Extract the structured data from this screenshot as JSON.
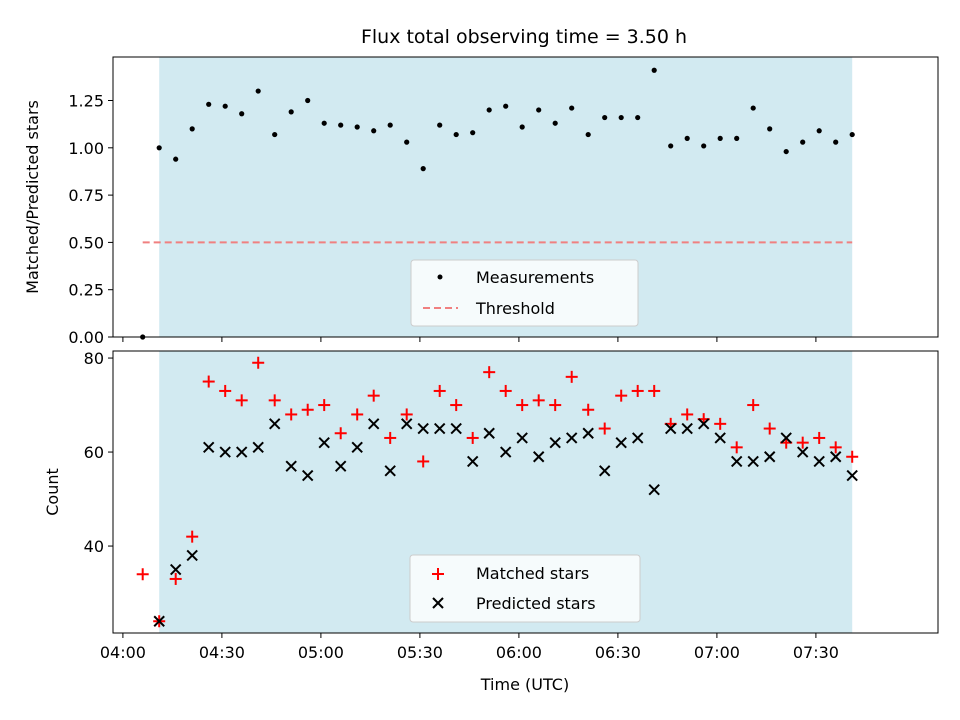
{
  "chart_data": [
    {
      "type": "scatter",
      "title": "Flux total observing time = 3.50 h",
      "xlabel": "",
      "ylabel": "Matched/Predicted stars",
      "xlim": [
        "03:57",
        "08:07"
      ],
      "ylim": [
        0,
        1.48
      ],
      "yticks": [
        0.0,
        0.25,
        0.5,
        0.75,
        1.0,
        1.25
      ],
      "ytick_labels": [
        "0.00",
        "0.25",
        "0.50",
        "0.75",
        "1.00",
        "1.25"
      ],
      "shaded_span": [
        "04:11",
        "07:41"
      ],
      "shade_color": "#add8e6",
      "legend": {
        "placement": "lower center"
      },
      "series": [
        {
          "name": "Measurements",
          "kind": "points",
          "color": "#000000",
          "x": [
            "04:06",
            "04:11",
            "04:16",
            "04:21",
            "04:26",
            "04:31",
            "04:36",
            "04:41",
            "04:46",
            "04:51",
            "04:56",
            "05:01",
            "05:06",
            "05:11",
            "05:16",
            "05:21",
            "05:26",
            "05:31",
            "05:36",
            "05:41",
            "05:46",
            "05:51",
            "05:56",
            "06:01",
            "06:06",
            "06:11",
            "06:16",
            "06:21",
            "06:26",
            "06:31",
            "06:36",
            "06:41",
            "06:46",
            "06:51",
            "06:56",
            "07:01",
            "07:06",
            "07:11",
            "07:16",
            "07:21",
            "07:26",
            "07:31",
            "07:36",
            "07:41"
          ],
          "y": [
            0.0,
            1.0,
            0.94,
            1.1,
            1.23,
            1.22,
            1.18,
            1.3,
            1.07,
            1.19,
            1.25,
            1.13,
            1.12,
            1.11,
            1.09,
            1.12,
            1.03,
            0.89,
            1.12,
            1.07,
            1.08,
            1.2,
            1.22,
            1.11,
            1.2,
            1.13,
            1.21,
            1.07,
            1.16,
            1.16,
            1.16,
            1.41,
            1.01,
            1.05,
            1.01,
            1.05,
            1.05,
            1.21,
            1.1,
            0.98,
            1.03,
            1.09,
            1.03,
            1.07
          ]
        },
        {
          "name": "Threshold",
          "kind": "dashed-line",
          "color": "#f08080",
          "x": [
            "04:06",
            "07:41"
          ],
          "y": [
            0.5,
            0.5
          ]
        }
      ]
    },
    {
      "type": "scatter",
      "title": "",
      "xlabel": "Time (UTC)",
      "ylabel": "Count",
      "xlim": [
        "03:57",
        "08:07"
      ],
      "ylim": [
        21.5,
        81.5
      ],
      "yticks": [
        40,
        60,
        80
      ],
      "ytick_labels": [
        "40",
        "60",
        "80"
      ],
      "xticks": [
        "04:00",
        "04:30",
        "05:00",
        "05:30",
        "06:00",
        "06:30",
        "07:00",
        "07:30"
      ],
      "shaded_span": [
        "04:11",
        "07:41"
      ],
      "shade_color": "#add8e6",
      "legend": {
        "placement": "lower center"
      },
      "series": [
        {
          "name": "Matched stars",
          "kind": "plus",
          "color": "#ff0000",
          "x": [
            "04:06",
            "04:11",
            "04:16",
            "04:21",
            "04:26",
            "04:31",
            "04:36",
            "04:41",
            "04:46",
            "04:51",
            "04:56",
            "05:01",
            "05:06",
            "05:11",
            "05:16",
            "05:21",
            "05:26",
            "05:31",
            "05:36",
            "05:41",
            "05:46",
            "05:51",
            "05:56",
            "06:01",
            "06:06",
            "06:11",
            "06:16",
            "06:21",
            "06:26",
            "06:31",
            "06:36",
            "06:41",
            "06:46",
            "06:51",
            "06:56",
            "07:01",
            "07:06",
            "07:11",
            "07:16",
            "07:21",
            "07:26",
            "07:31",
            "07:36",
            "07:41"
          ],
          "y": [
            34,
            24,
            33,
            42,
            75,
            73,
            71,
            79,
            71,
            68,
            69,
            70,
            64,
            68,
            72,
            63,
            68,
            58,
            73,
            70,
            63,
            77,
            73,
            70,
            71,
            70,
            76,
            69,
            65,
            72,
            73,
            73,
            66,
            68,
            67,
            66,
            61,
            70,
            65,
            62,
            62,
            63,
            61,
            59
          ]
        },
        {
          "name": "Predicted stars",
          "kind": "x",
          "color": "#000000",
          "x": [
            "04:11",
            "04:16",
            "04:21",
            "04:26",
            "04:31",
            "04:36",
            "04:41",
            "04:46",
            "04:51",
            "04:56",
            "05:01",
            "05:06",
            "05:11",
            "05:16",
            "05:21",
            "05:26",
            "05:31",
            "05:36",
            "05:41",
            "05:46",
            "05:51",
            "05:56",
            "06:01",
            "06:06",
            "06:11",
            "06:16",
            "06:21",
            "06:26",
            "06:31",
            "06:36",
            "06:41",
            "06:46",
            "06:51",
            "06:56",
            "07:01",
            "07:06",
            "07:11",
            "07:16",
            "07:21",
            "07:26",
            "07:31",
            "07:36",
            "07:41"
          ],
          "y": [
            24,
            35,
            38,
            61,
            60,
            60,
            61,
            66,
            57,
            55,
            62,
            57,
            61,
            66,
            56,
            66,
            65,
            65,
            65,
            58,
            64,
            60,
            63,
            59,
            62,
            63,
            64,
            56,
            62,
            63,
            52,
            65,
            65,
            66,
            63,
            58,
            58,
            59,
            63,
            60,
            58,
            59,
            55
          ]
        }
      ]
    }
  ]
}
